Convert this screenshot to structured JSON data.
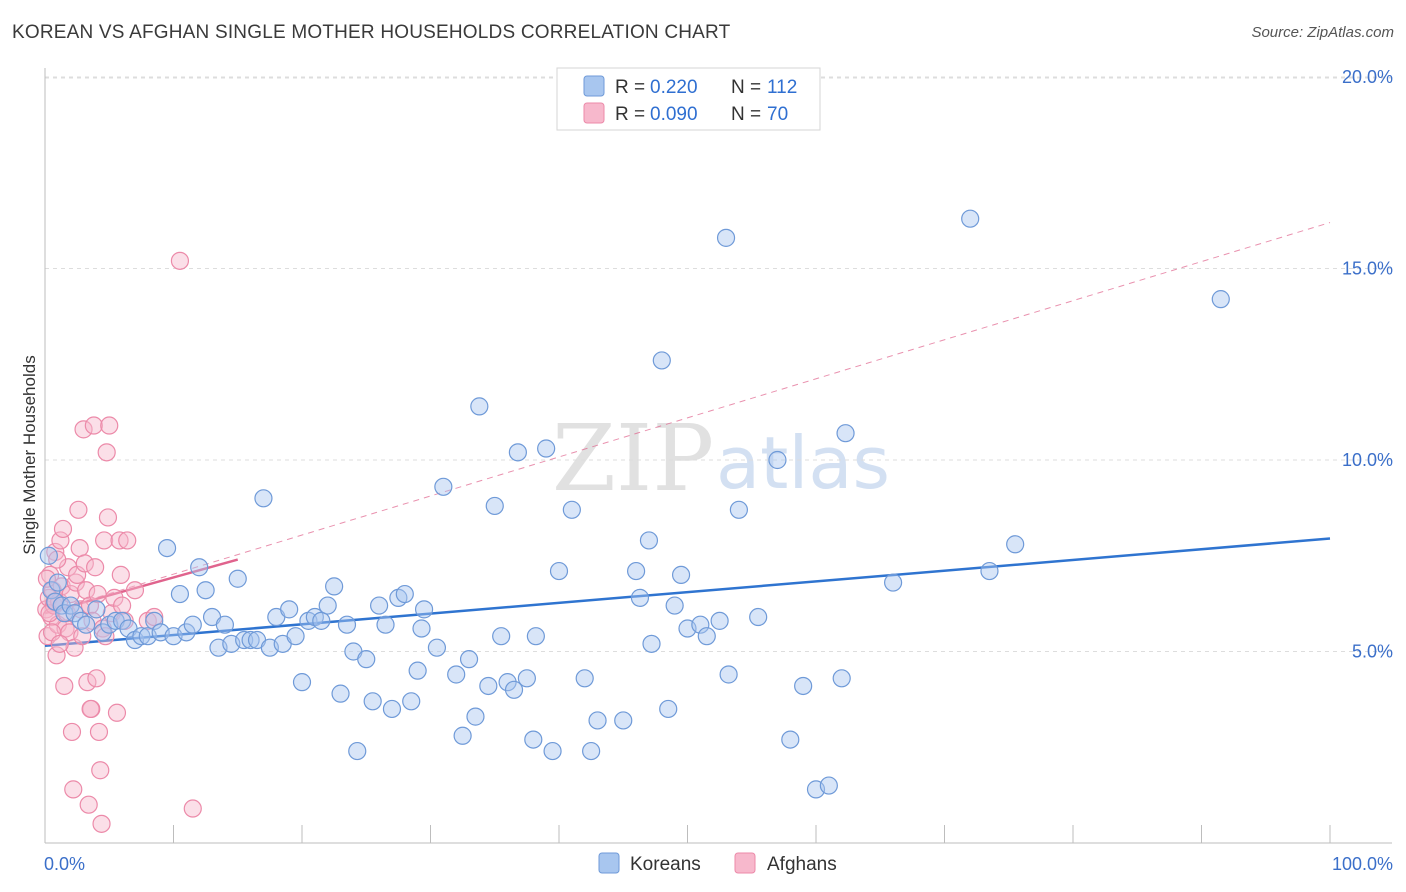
{
  "title": "KOREAN VS AFGHAN SINGLE MOTHER HOUSEHOLDS CORRELATION CHART",
  "source": "Source: ZipAtlas.com",
  "watermark": {
    "zip": "ZIP",
    "atlas": "atlas"
  },
  "colors": {
    "korean_fill": "#a8c6ef",
    "korean_stroke": "#6f9ad8",
    "korean_line": "#2f74d0",
    "afghan_fill": "#f7b8cc",
    "afghan_stroke": "#ec8aa9",
    "afghan_line": "#e0638d",
    "grid": "#dddddd",
    "tick_label": "#3b6fc9"
  },
  "legend": {
    "items": [
      {
        "r_label": "R =",
        "r_value": "0.220",
        "n_label": "N =",
        "n_value": "112"
      },
      {
        "r_label": "R =",
        "r_value": "0.090",
        "n_label": "N =",
        "n_value": "70"
      }
    ]
  },
  "bottom_legend": {
    "koreans": "Koreans",
    "afghans": "Afghans"
  },
  "chart_data": {
    "type": "scatter",
    "title": "KOREAN VS AFGHAN SINGLE MOTHER HOUSEHOLDS CORRELATION CHART",
    "xlabel": "",
    "ylabel": "Single Mother Households",
    "xlim": [
      0,
      100
    ],
    "ylim": [
      0,
      20.5
    ],
    "x_ticks": [
      {
        "value": 0,
        "label": "0.0%"
      },
      {
        "value": 100,
        "label": "100.0%"
      }
    ],
    "x_minor_ticks": [
      10,
      20,
      30,
      40,
      50,
      60,
      70,
      80,
      90
    ],
    "y_ticks": [
      {
        "value": 5,
        "label": "5.0%"
      },
      {
        "value": 10,
        "label": "10.0%"
      },
      {
        "value": 15,
        "label": "15.0%"
      },
      {
        "value": 20,
        "label": "20.0%"
      }
    ],
    "grid": true,
    "series": [
      {
        "name": "Koreans",
        "R": 0.22,
        "N": 112,
        "trend": {
          "x": [
            0,
            100
          ],
          "y": [
            5.15,
            7.95
          ],
          "style": "solid"
        },
        "points": [
          [
            0.3,
            7.5
          ],
          [
            0.5,
            6.6
          ],
          [
            0.8,
            6.3
          ],
          [
            1.0,
            6.8
          ],
          [
            1.3,
            6.2
          ],
          [
            1.5,
            6.0
          ],
          [
            2.0,
            6.2
          ],
          [
            2.3,
            6.0
          ],
          [
            2.8,
            5.8
          ],
          [
            3.2,
            5.7
          ],
          [
            4.0,
            6.1
          ],
          [
            4.5,
            5.5
          ],
          [
            5.0,
            5.7
          ],
          [
            5.5,
            5.8
          ],
          [
            6.0,
            5.8
          ],
          [
            6.5,
            5.6
          ],
          [
            7.0,
            5.3
          ],
          [
            7.5,
            5.4
          ],
          [
            8.0,
            5.4
          ],
          [
            8.5,
            5.8
          ],
          [
            9.0,
            5.5
          ],
          [
            9.5,
            7.7
          ],
          [
            10.0,
            5.4
          ],
          [
            10.5,
            6.5
          ],
          [
            11.0,
            5.5
          ],
          [
            11.5,
            5.7
          ],
          [
            12.0,
            7.2
          ],
          [
            12.5,
            6.6
          ],
          [
            13.0,
            5.9
          ],
          [
            13.5,
            5.1
          ],
          [
            14.0,
            5.7
          ],
          [
            14.5,
            5.2
          ],
          [
            15.0,
            6.9
          ],
          [
            15.5,
            5.3
          ],
          [
            16.0,
            5.3
          ],
          [
            16.5,
            5.3
          ],
          [
            17.0,
            9.0
          ],
          [
            17.5,
            5.1
          ],
          [
            18.0,
            5.9
          ],
          [
            18.5,
            5.2
          ],
          [
            19.0,
            6.1
          ],
          [
            19.5,
            5.4
          ],
          [
            20.0,
            4.2
          ],
          [
            20.5,
            5.8
          ],
          [
            21.0,
            5.9
          ],
          [
            21.5,
            5.8
          ],
          [
            22.0,
            6.2
          ],
          [
            22.5,
            6.7
          ],
          [
            23.0,
            3.9
          ],
          [
            23.5,
            5.7
          ],
          [
            24.0,
            5.0
          ],
          [
            24.3,
            2.4
          ],
          [
            25.0,
            4.8
          ],
          [
            25.5,
            3.7
          ],
          [
            26.0,
            6.2
          ],
          [
            26.5,
            5.7
          ],
          [
            27.0,
            3.5
          ],
          [
            27.5,
            6.4
          ],
          [
            28.0,
            6.5
          ],
          [
            28.5,
            3.7
          ],
          [
            29.0,
            4.5
          ],
          [
            29.3,
            5.6
          ],
          [
            29.5,
            6.1
          ],
          [
            30.5,
            5.1
          ],
          [
            31.0,
            9.3
          ],
          [
            32.0,
            4.4
          ],
          [
            32.5,
            2.8
          ],
          [
            33.0,
            4.8
          ],
          [
            33.5,
            3.3
          ],
          [
            33.8,
            11.4
          ],
          [
            34.5,
            4.1
          ],
          [
            35.0,
            8.8
          ],
          [
            35.5,
            5.4
          ],
          [
            36.0,
            4.2
          ],
          [
            36.5,
            4.0
          ],
          [
            36.8,
            10.2
          ],
          [
            37.5,
            4.3
          ],
          [
            38.0,
            2.7
          ],
          [
            38.2,
            5.4
          ],
          [
            39.0,
            10.3
          ],
          [
            39.5,
            2.4
          ],
          [
            40.0,
            7.1
          ],
          [
            41.0,
            8.7
          ],
          [
            42.0,
            4.3
          ],
          [
            42.5,
            2.4
          ],
          [
            43.0,
            3.2
          ],
          [
            45.0,
            3.2
          ],
          [
            46.0,
            7.1
          ],
          [
            46.3,
            6.4
          ],
          [
            47.0,
            7.9
          ],
          [
            47.2,
            5.2
          ],
          [
            48.0,
            12.6
          ],
          [
            48.5,
            3.5
          ],
          [
            49.0,
            6.2
          ],
          [
            49.5,
            7.0
          ],
          [
            50.0,
            5.6
          ],
          [
            51.0,
            5.7
          ],
          [
            51.5,
            5.4
          ],
          [
            52.5,
            5.8
          ],
          [
            53.0,
            15.8
          ],
          [
            53.2,
            4.4
          ],
          [
            54.0,
            8.7
          ],
          [
            55.5,
            5.9
          ],
          [
            57.0,
            10.0
          ],
          [
            58.0,
            2.7
          ],
          [
            59.0,
            4.1
          ],
          [
            60.0,
            1.4
          ],
          [
            61.0,
            1.5
          ],
          [
            62.0,
            4.3
          ],
          [
            62.3,
            10.7
          ],
          [
            66.0,
            6.8
          ],
          [
            72.0,
            16.3
          ],
          [
            73.5,
            7.1
          ],
          [
            75.5,
            7.8
          ],
          [
            91.5,
            14.2
          ]
        ]
      },
      {
        "name": "Afghans",
        "R": 0.09,
        "N": 70,
        "trend": {
          "x": [
            0,
            15
          ],
          "y": [
            6.0,
            7.4
          ],
          "style": "solid",
          "extended": {
            "x": [
              0,
              100
            ],
            "y": [
              6.0,
              16.2
            ],
            "style": "dashed"
          }
        },
        "points": [
          [
            0.1,
            6.1
          ],
          [
            0.2,
            5.4
          ],
          [
            0.3,
            6.4
          ],
          [
            0.4,
            7.0
          ],
          [
            0.5,
            5.9
          ],
          [
            0.6,
            6.6
          ],
          [
            0.7,
            6.2
          ],
          [
            0.8,
            7.6
          ],
          [
            0.9,
            4.9
          ],
          [
            1.0,
            5.7
          ],
          [
            1.1,
            6.3
          ],
          [
            1.2,
            7.9
          ],
          [
            1.3,
            6.7
          ],
          [
            1.4,
            8.2
          ],
          [
            1.5,
            4.1
          ],
          [
            1.6,
            5.6
          ],
          [
            1.7,
            6.0
          ],
          [
            1.8,
            7.2
          ],
          [
            1.9,
            5.5
          ],
          [
            2.0,
            6.5
          ],
          [
            2.1,
            2.9
          ],
          [
            2.2,
            1.4
          ],
          [
            2.3,
            5.1
          ],
          [
            2.4,
            6.8
          ],
          [
            2.5,
            7.0
          ],
          [
            2.6,
            8.7
          ],
          [
            2.7,
            7.7
          ],
          [
            2.8,
            6.1
          ],
          [
            2.9,
            5.4
          ],
          [
            3.0,
            10.8
          ],
          [
            3.1,
            7.3
          ],
          [
            3.2,
            6.6
          ],
          [
            3.3,
            4.2
          ],
          [
            3.4,
            1.0
          ],
          [
            3.5,
            6.2
          ],
          [
            3.6,
            3.5
          ],
          [
            3.7,
            5.8
          ],
          [
            3.8,
            10.9
          ],
          [
            3.9,
            7.2
          ],
          [
            4.0,
            4.3
          ],
          [
            4.1,
            6.5
          ],
          [
            4.2,
            2.9
          ],
          [
            4.3,
            1.9
          ],
          [
            4.4,
            0.5
          ],
          [
            4.5,
            5.6
          ],
          [
            4.6,
            7.9
          ],
          [
            4.7,
            5.4
          ],
          [
            4.8,
            10.2
          ],
          [
            4.9,
            8.5
          ],
          [
            5.0,
            10.9
          ],
          [
            5.2,
            6.0
          ],
          [
            5.4,
            6.4
          ],
          [
            5.6,
            3.4
          ],
          [
            5.8,
            7.9
          ],
          [
            6.0,
            6.2
          ],
          [
            6.2,
            5.8
          ],
          [
            6.4,
            7.9
          ],
          [
            7.0,
            6.6
          ],
          [
            8.0,
            5.8
          ],
          [
            8.5,
            5.9
          ],
          [
            10.5,
            15.2
          ],
          [
            11.5,
            0.9
          ],
          [
            0.15,
            6.9
          ],
          [
            0.35,
            6.0
          ],
          [
            0.55,
            5.5
          ],
          [
            0.75,
            6.3
          ],
          [
            0.95,
            7.4
          ],
          [
            1.15,
            5.2
          ],
          [
            3.55,
            3.5
          ],
          [
            5.9,
            7.0
          ]
        ]
      }
    ]
  }
}
